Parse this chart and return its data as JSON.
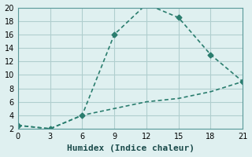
{
  "xlabel": "Humidex (Indice chaleur)",
  "line1_x": [
    0,
    3,
    6,
    9,
    12,
    15,
    18,
    21
  ],
  "line1_y": [
    2.5,
    2.0,
    4.0,
    16.0,
    20.5,
    18.5,
    13.0,
    9.0
  ],
  "line2_x": [
    0,
    3,
    6,
    9,
    12,
    15,
    18,
    21
  ],
  "line2_y": [
    2.5,
    2.0,
    4.0,
    5.0,
    6.0,
    6.5,
    7.5,
    9.0
  ],
  "color": "#2a7d6e",
  "bg_color": "#dff0f0",
  "grid_color": "#b0cece",
  "xlim": [
    0,
    21
  ],
  "ylim": [
    2,
    20
  ],
  "xticks": [
    0,
    3,
    6,
    9,
    12,
    15,
    18,
    21
  ],
  "yticks": [
    2,
    4,
    6,
    8,
    10,
    12,
    14,
    16,
    18,
    20
  ],
  "xlabel_fontsize": 8,
  "tick_fontsize": 7
}
